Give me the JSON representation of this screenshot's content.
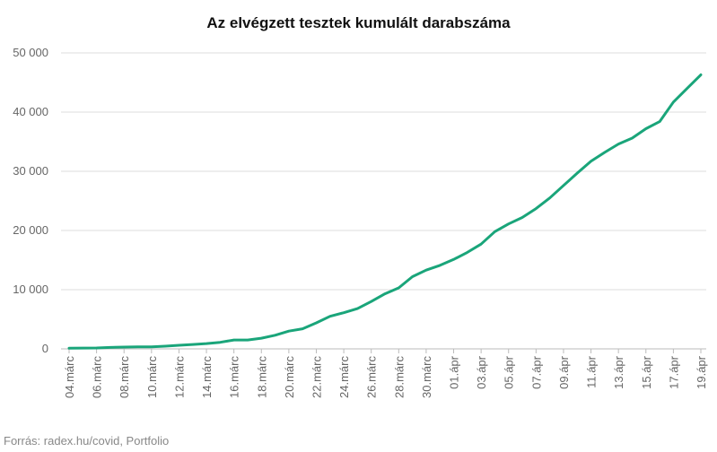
{
  "chart_data": {
    "type": "line",
    "title": "Az elvégzett tesztek kumulált darabszáma",
    "xlabel": "",
    "ylabel": "",
    "ylim": [
      0,
      50000
    ],
    "yticks": [
      0,
      10000,
      20000,
      30000,
      40000,
      50000
    ],
    "ytick_labels": [
      "0",
      "10 000",
      "20 000",
      "30 000",
      "40 000",
      "50 000"
    ],
    "grid": true,
    "line_color": "#1aa57a",
    "x": [
      "04.március",
      "05.március",
      "06.március",
      "07.március",
      "08.március",
      "09.március",
      "10.március",
      "11.március",
      "12.március",
      "13.március",
      "14.március",
      "15.március",
      "16.március",
      "17.március",
      "18.március",
      "19.március",
      "20.március",
      "21.március",
      "22.március",
      "23.március",
      "24.március",
      "25.március",
      "26.március",
      "27.március",
      "28.március",
      "29.március",
      "30.március",
      "31.március",
      "01.április",
      "02.április",
      "03.április",
      "04.április",
      "05.április",
      "06.április",
      "07.április",
      "08.április",
      "09.április",
      "10.április",
      "11.április",
      "12.április",
      "13.április",
      "14.április",
      "15.április",
      "16.április",
      "17.április",
      "18.április",
      "19.április"
    ],
    "tick_labels": [
      "04.márc",
      "06.márc",
      "08.márc",
      "10.márc",
      "12.márc",
      "14.márc",
      "16.márc",
      "18.márc",
      "20.márc",
      "22.márc",
      "24.márc",
      "26.márc",
      "28.márc",
      "30.márc",
      "01.ápr",
      "03.ápr",
      "05.ápr",
      "07.ápr",
      "09.ápr",
      "11.ápr",
      "13.ápr",
      "15.ápr",
      "17.ápr",
      "19.ápr"
    ],
    "series": [
      {
        "values": [
          100,
          130,
          150,
          250,
          300,
          330,
          330,
          450,
          600,
          750,
          900,
          1100,
          1500,
          1500,
          1800,
          2300,
          3000,
          3400,
          4400,
          5500,
          6100,
          6800,
          8000,
          9300,
          10300,
          12200,
          13300,
          14100,
          15100,
          16300,
          17700,
          19800,
          21100,
          22200,
          23700,
          25500,
          27600,
          29700,
          31700,
          33200,
          34600,
          35600,
          37200,
          38400,
          41700,
          44000,
          46300
        ]
      }
    ]
  },
  "source": "Forrás: radex.hu/covid, Portfolio"
}
